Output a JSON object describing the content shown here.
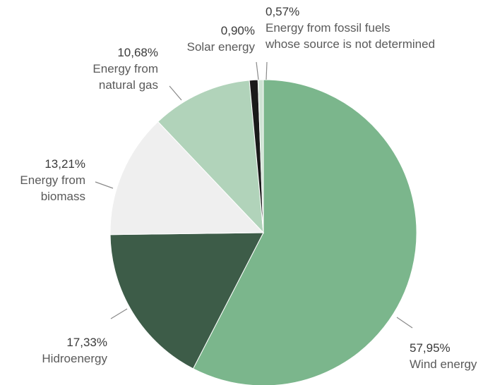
{
  "chart_data": {
    "type": "pie",
    "slices": [
      {
        "value": 57.95,
        "value_label": "57,95%",
        "label_lines": [
          "Wind energy"
        ],
        "color": "#7bb68c"
      },
      {
        "value": 17.33,
        "value_label": "17,33%",
        "label_lines": [
          "Hidroenergy"
        ],
        "color": "#3d5c48"
      },
      {
        "value": 13.21,
        "value_label": "13,21%",
        "label_lines": [
          "Energy from",
          "biomass"
        ],
        "color": "#efefef"
      },
      {
        "value": 10.68,
        "value_label": "10,68%",
        "label_lines": [
          "Energy from",
          "natural gas"
        ],
        "color": "#b1d3ba"
      },
      {
        "value": 0.9,
        "value_label": "0,90%",
        "label_lines": [
          "Solar energy"
        ],
        "color": "#1a1a1a"
      },
      {
        "value": 0.57,
        "value_label": "0,57%",
        "label_lines": [
          "Energy from fossil fuels",
          "whose source is not determined"
        ],
        "color": "#cfe3d4"
      }
    ],
    "start_angle": "12 o'clock",
    "direction": "clockwise",
    "legend": "none"
  }
}
